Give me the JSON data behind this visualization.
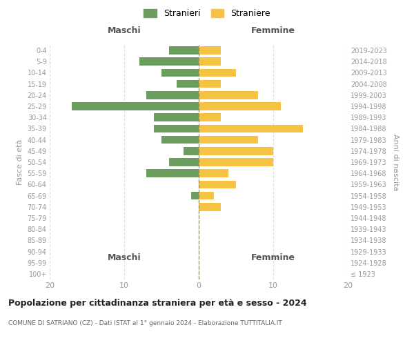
{
  "age_groups": [
    "100+",
    "95-99",
    "90-94",
    "85-89",
    "80-84",
    "75-79",
    "70-74",
    "65-69",
    "60-64",
    "55-59",
    "50-54",
    "45-49",
    "40-44",
    "35-39",
    "30-34",
    "25-29",
    "20-24",
    "15-19",
    "10-14",
    "5-9",
    "0-4"
  ],
  "birth_years": [
    "≤ 1923",
    "1924-1928",
    "1929-1933",
    "1934-1938",
    "1939-1943",
    "1944-1948",
    "1949-1953",
    "1954-1958",
    "1959-1963",
    "1964-1968",
    "1969-1973",
    "1974-1978",
    "1979-1983",
    "1984-1988",
    "1989-1993",
    "1994-1998",
    "1999-2003",
    "2004-2008",
    "2009-2013",
    "2014-2018",
    "2019-2023"
  ],
  "maschi": [
    0,
    0,
    0,
    0,
    0,
    0,
    0,
    1,
    0,
    7,
    4,
    2,
    5,
    6,
    6,
    17,
    7,
    3,
    5,
    8,
    4
  ],
  "femmine": [
    0,
    0,
    0,
    0,
    0,
    0,
    3,
    2,
    5,
    4,
    10,
    10,
    8,
    14,
    3,
    11,
    8,
    3,
    5,
    3,
    3
  ],
  "male_color": "#6b9e5e",
  "female_color": "#f5c242",
  "title": "Popolazione per cittadinanza straniera per età e sesso - 2024",
  "subtitle": "COMUNE DI SATRIANO (CZ) - Dati ISTAT al 1° gennaio 2024 - Elaborazione TUTTITALIA.IT",
  "legend_male": "Stranieri",
  "legend_female": "Straniere",
  "xlabel_left": "Maschi",
  "xlabel_right": "Femmine",
  "ylabel_left": "Fasce di età",
  "ylabel_right": "Anni di nascita",
  "xlim": 20,
  "background_color": "#ffffff"
}
